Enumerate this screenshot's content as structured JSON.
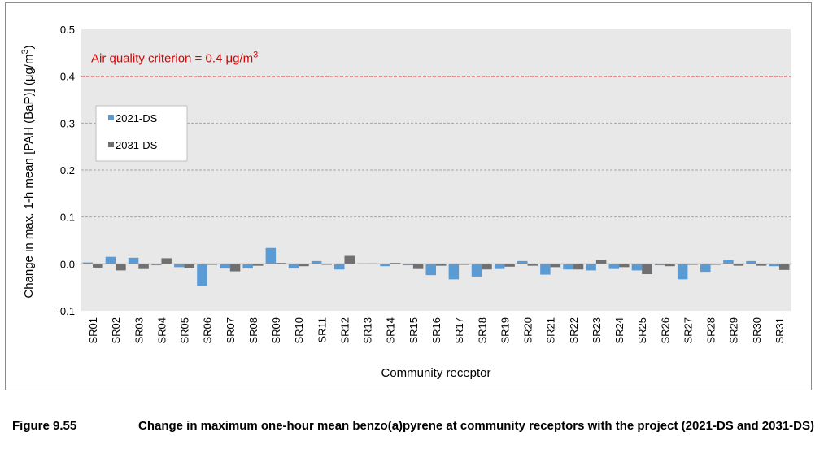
{
  "figure": {
    "number": "Figure 9.55",
    "caption": "Change in maximum one-hour mean benzo(a)pyrene at community receptors with the project (2021-DS and 2031-DS)"
  },
  "chart_data": {
    "type": "bar",
    "xlabel": "Community receptor",
    "ylabel_main": "Change in max. 1-h mean [PAH (BaP)] (μg/m",
    "ylabel_sup": "3",
    "ylabel_end": ")",
    "ylim": [
      -0.1,
      0.5
    ],
    "yticks": [
      "-0.1",
      "0.0",
      "0.1",
      "0.2",
      "0.3",
      "0.4",
      "0.5"
    ],
    "grid": true,
    "legend_position": "left",
    "categories": [
      "SR01",
      "SR02",
      "SR03",
      "SR04",
      "SR05",
      "SR06",
      "SR07",
      "SR08",
      "SR09",
      "SR10",
      "SR11",
      "SR12",
      "SR13",
      "SR14",
      "SR15",
      "SR16",
      "SR17",
      "SR18",
      "SR19",
      "SR20",
      "SR21",
      "SR22",
      "SR23",
      "SR24",
      "SR25",
      "SR26",
      "SR27",
      "SR28",
      "SR29",
      "SR30",
      "SR31"
    ],
    "series": [
      {
        "name": "2021-DS",
        "color": "#5b9bd5",
        "values": [
          0.003,
          0.015,
          0.013,
          -0.003,
          -0.007,
          -0.047,
          -0.01,
          -0.01,
          0.034,
          -0.01,
          0.006,
          -0.012,
          0.001,
          -0.005,
          -0.003,
          -0.024,
          -0.033,
          -0.027,
          -0.011,
          0.006,
          -0.023,
          -0.012,
          -0.014,
          -0.011,
          -0.014,
          -0.003,
          -0.033,
          -0.017,
          0.008,
          0.006,
          -0.005
        ]
      },
      {
        "name": "2031-DS",
        "color": "#707070",
        "values": [
          -0.008,
          -0.014,
          -0.011,
          0.012,
          -0.009,
          -0.002,
          -0.016,
          -0.004,
          0.002,
          -0.005,
          -0.002,
          0.017,
          0.001,
          0.002,
          -0.011,
          -0.004,
          -0.002,
          -0.012,
          -0.006,
          -0.004,
          -0.007,
          -0.012,
          0.008,
          -0.007,
          -0.022,
          -0.005,
          -0.002,
          -0.002,
          -0.004,
          -0.004,
          -0.013
        ]
      }
    ],
    "criterion": {
      "value": 0.4,
      "label_main": "Air quality criterion = 0.4 μg/m",
      "label_sup": "3",
      "color": "#e00000"
    },
    "plot_background": "#e8e8e8"
  }
}
